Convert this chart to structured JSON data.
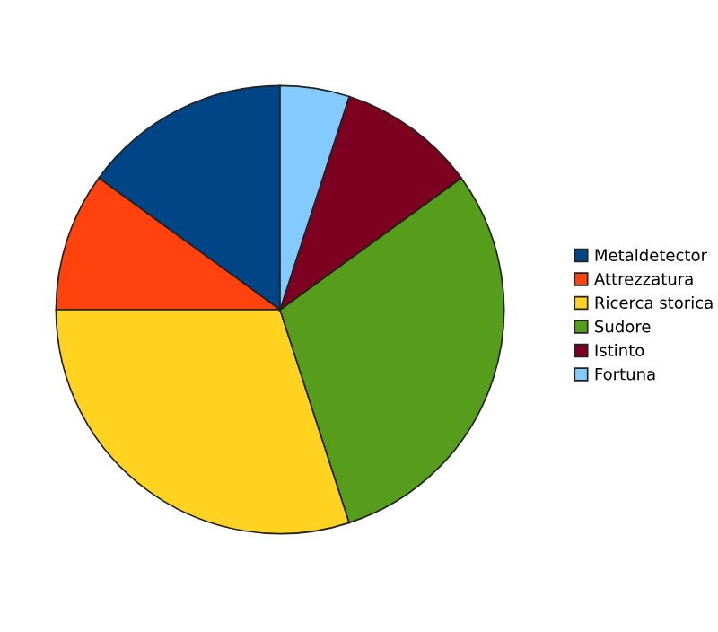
{
  "chart_data": {
    "type": "pie",
    "categories": [
      "Metaldetector",
      "Attrezzatura",
      "Ricerca storica",
      "Sudore",
      "Istinto",
      "Fortuna"
    ],
    "values": [
      15,
      10,
      30,
      30,
      10,
      5
    ],
    "colors": [
      "#004586",
      "#ff420e",
      "#ffd320",
      "#579d1c",
      "#7e0021",
      "#83caff"
    ],
    "legend": "right"
  }
}
